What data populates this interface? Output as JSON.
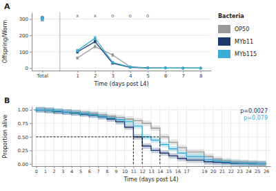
{
  "chart_data": [
    {
      "type": "line",
      "title": "A",
      "xlabel": "Time (days post L4)",
      "ylabel": "Offspring/Worm",
      "x": [
        1,
        2,
        3,
        4,
        5,
        6,
        7,
        8
      ],
      "xlim": [
        -1.6,
        8.6
      ],
      "xticks": [
        {
          "value": -1,
          "label": "Total"
        },
        1,
        2,
        3,
        4,
        5,
        6,
        7,
        8
      ],
      "ylim": [
        -15,
        340
      ],
      "yticks": [
        0,
        100,
        200,
        300
      ],
      "grid": "y",
      "legend": "right",
      "legend_title": "Bacteria",
      "marker": "circle",
      "series": [
        {
          "name": "OP50",
          "color": "#999999",
          "values": [
            62,
            132,
            80,
            8,
            2,
            0.5,
            0.3,
            0.1
          ],
          "errors": [
            6,
            9,
            9,
            2,
            1,
            0.3,
            0.1,
            0.1
          ],
          "total": 295,
          "total_error": 7
        },
        {
          "name": "MYb11",
          "color": "#1c3a6e",
          "values": [
            99,
            162,
            30,
            5,
            1,
            0.5,
            0.3,
            0.1
          ],
          "errors": [
            8,
            8,
            6,
            2,
            0.5,
            0.3,
            0.1,
            0.1
          ],
          "total": 308,
          "total_error": 5
        },
        {
          "name": "MYb115",
          "color": "#3badd4",
          "values": [
            107,
            183,
            35,
            7,
            1,
            0.5,
            0.3,
            0.1
          ],
          "errors": [
            8,
            10,
            6,
            2,
            0.5,
            0.3,
            0.1,
            0.1
          ],
          "total": 303,
          "total_error": 9
        }
      ],
      "annotations": [
        {
          "text": "x",
          "x": 1,
          "y": 318
        },
        {
          "text": "x",
          "x": 2,
          "y": 318
        },
        {
          "text": "o",
          "x": 3,
          "y": 318
        },
        {
          "text": "o",
          "x": 4,
          "y": 318
        },
        {
          "text": "o",
          "x": 5,
          "y": 318
        }
      ]
    },
    {
      "type": "step",
      "title": "B",
      "xlabel": "Time (days post L4)",
      "ylabel": "Proportion alive",
      "xlim": [
        -0.5,
        26.5
      ],
      "xticks": [
        0,
        1,
        2,
        3,
        4,
        5,
        6,
        7,
        8,
        9,
        10,
        11,
        12,
        13,
        14,
        15,
        16,
        17,
        19,
        20,
        21,
        22,
        23,
        24,
        25,
        26
      ],
      "ylim": [
        -0.04,
        1.06
      ],
      "yticks": [
        {
          "value": 0.0,
          "label": "0.00"
        },
        {
          "value": 0.25,
          "label": "0.25"
        },
        {
          "value": 0.5,
          "label": "0.50"
        },
        {
          "value": 0.75,
          "label": "0.75"
        },
        {
          "value": 1.0,
          "label": "1.00"
        }
      ],
      "grid": true,
      "marker": "plus",
      "ci_width": 0.05,
      "censor_indices": [
        0,
        1,
        2,
        3,
        4,
        5,
        6
      ],
      "median_lines": {
        "y": 0.5,
        "from": 0,
        "x": [
          11,
          12,
          14
        ]
      },
      "series": [
        {
          "color": "#999999",
          "x": [
            0,
            1,
            2,
            3,
            4,
            5,
            6,
            7,
            8,
            9,
            10,
            11,
            12,
            13,
            14,
            15,
            16,
            17,
            19,
            20,
            21,
            22,
            23,
            24,
            25,
            26
          ],
          "values": [
            1.0,
            0.99,
            0.97,
            0.96,
            0.95,
            0.94,
            0.93,
            0.91,
            0.88,
            0.86,
            0.83,
            0.8,
            0.75,
            0.66,
            0.5,
            0.4,
            0.3,
            0.22,
            0.14,
            0.09,
            0.06,
            0.04,
            0.03,
            0.02,
            0.01,
            0.01
          ]
        },
        {
          "color": "#1c3a6e",
          "x": [
            0,
            1,
            2,
            3,
            4,
            5,
            6,
            7,
            8,
            9,
            10,
            11,
            12,
            13,
            14,
            15,
            16,
            17,
            19,
            20,
            21,
            22,
            23,
            24,
            25,
            26
          ],
          "values": [
            1.0,
            0.99,
            0.97,
            0.96,
            0.94,
            0.92,
            0.9,
            0.87,
            0.83,
            0.78,
            0.68,
            0.5,
            0.33,
            0.25,
            0.2,
            0.15,
            0.1,
            0.07,
            0.04,
            0.03,
            0.02,
            0.01,
            0.01,
            0.005,
            0.003,
            0.002
          ]
        },
        {
          "color": "#3badd4",
          "x": [
            0,
            1,
            2,
            3,
            4,
            5,
            6,
            7,
            8,
            9,
            10,
            11,
            12,
            13,
            14,
            15,
            16,
            17,
            19,
            20,
            21,
            22,
            23,
            24,
            25,
            26
          ],
          "values": [
            1.0,
            0.99,
            0.98,
            0.96,
            0.95,
            0.93,
            0.91,
            0.88,
            0.85,
            0.82,
            0.78,
            0.7,
            0.5,
            0.44,
            0.36,
            0.28,
            0.2,
            0.14,
            0.08,
            0.06,
            0.04,
            0.025,
            0.015,
            0.01,
            0.005,
            0.003
          ]
        }
      ],
      "annotations": [
        {
          "text": "p=0.0027",
          "color": "#1c3a6e"
        },
        {
          "text": "p=0.079",
          "color": "#3badd4"
        }
      ]
    }
  ]
}
